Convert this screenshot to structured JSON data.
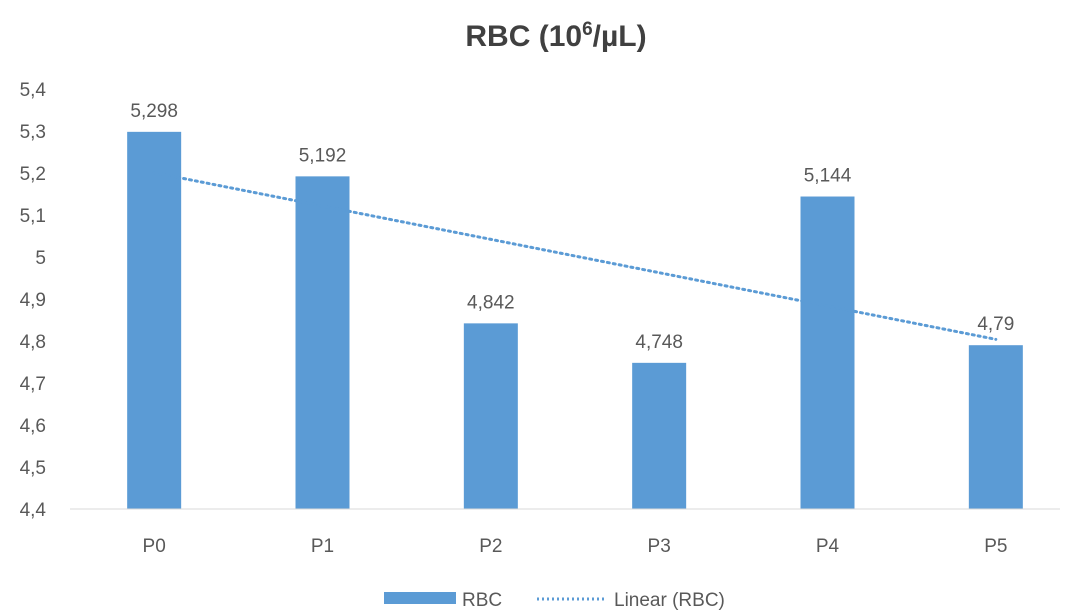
{
  "chart_data": {
    "type": "bar",
    "title": "RBC (10⁶/µL)",
    "title_parts": {
      "base": "RBC (10",
      "superscript": "6",
      "unit": "/µL)"
    },
    "xlabel": "",
    "ylabel": "",
    "categories": [
      "P0",
      "P1",
      "P2",
      "P3",
      "P4",
      "P5"
    ],
    "series": [
      {
        "name": "RBC",
        "type": "bar",
        "values": [
          5.298,
          5.192,
          4.842,
          4.748,
          5.144,
          4.79
        ],
        "data_labels": [
          "5,298",
          "5,192",
          "4,842",
          "4,748",
          "5,144",
          "4,79"
        ],
        "color": "#5B9BD5"
      },
      {
        "name": "Linear (RBC)",
        "type": "trendline",
        "style": "dotted",
        "color": "#5B9BD5"
      }
    ],
    "ylim": [
      4.4,
      5.4
    ],
    "y_ticks": [
      "4,4",
      "4,5",
      "4,6",
      "4,7",
      "4,8",
      "4,9",
      "5",
      "5,1",
      "5,2",
      "5,3",
      "5,4"
    ],
    "y_tick_values": [
      4.4,
      4.5,
      4.6,
      4.7,
      4.8,
      4.9,
      5.0,
      5.1,
      5.2,
      5.3,
      5.4
    ],
    "grid": false,
    "legend_position": "bottom",
    "colors": {
      "bar": "#5B9BD5",
      "text": "#595959",
      "title": "#404040",
      "axis": "#D9D9D9"
    }
  }
}
